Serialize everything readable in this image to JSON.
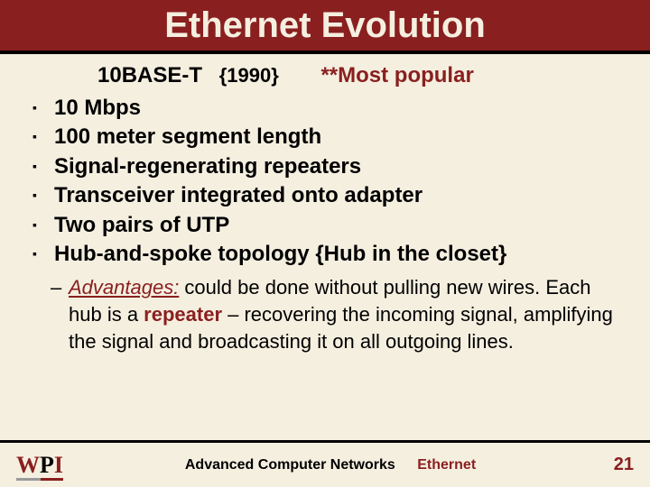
{
  "colors": {
    "background": "#f5efe0",
    "title_bar_bg": "#8a1f1f",
    "title_bar_border": "#000000",
    "accent": "#8a1f1f",
    "body_text": "#000000"
  },
  "typography": {
    "title_fontsize": 40,
    "subtitle_fontsize": 24,
    "bullet_fontsize": 24,
    "subitem_fontsize": 22,
    "footer_fontsize": 16,
    "pagenum_fontsize": 20,
    "font_family": "Comic Sans MS"
  },
  "title": "Ethernet Evolution",
  "subtitle": {
    "standard": "10BASE-T",
    "year": "{1990}",
    "popular": "**Most popular"
  },
  "bullets": [
    "10 Mbps",
    "100 meter segment length",
    "Signal-regenerating repeaters",
    "Transceiver integrated onto adapter",
    "Two pairs of UTP",
    "Hub-and-spoke topology {Hub in the closet}"
  ],
  "advantage": {
    "label": "Advantages:",
    "pre": " could be done without pulling new wires. Each hub is a ",
    "highlight": "repeater",
    "post": " – recovering the incoming signal, amplifying the signal and broadcasting it on all outgoing lines."
  },
  "footer": {
    "logo": {
      "w": "W",
      "p": "P",
      "i": "I"
    },
    "course": "Advanced Computer Networks",
    "topic": "Ethernet",
    "page": "21"
  }
}
